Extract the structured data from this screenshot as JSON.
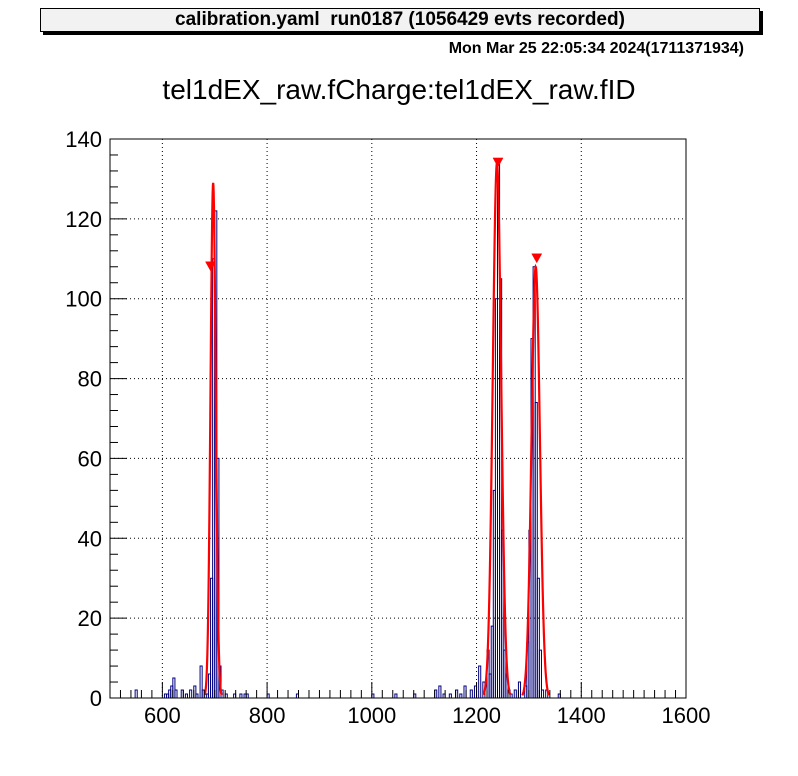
{
  "header": {
    "title": "calibration.yaml  run0187 (1056429 evts recorded)",
    "timestamp": "Mon Mar 25 22:05:34 2024(1711371934)"
  },
  "chart_data": {
    "type": "histogram",
    "title": "tel1dEX_raw.fCharge:tel1dEX_raw.fID",
    "xlabel": "",
    "ylabel": "",
    "xlim": [
      500,
      1600
    ],
    "ylim": [
      0,
      140
    ],
    "grid": true,
    "xticks": [
      600,
      800,
      1000,
      1200,
      1400,
      1600
    ],
    "yticks": [
      0,
      20,
      40,
      60,
      80,
      100,
      120,
      140
    ],
    "bin_width": 4,
    "histogram": {
      "name": "data",
      "color": "#000080",
      "bins": [
        [
          548,
          2
        ],
        [
          604,
          1
        ],
        [
          608,
          1
        ],
        [
          612,
          2
        ],
        [
          616,
          3
        ],
        [
          620,
          5
        ],
        [
          624,
          2
        ],
        [
          636,
          2
        ],
        [
          644,
          1
        ],
        [
          652,
          2
        ],
        [
          660,
          3
        ],
        [
          664,
          1
        ],
        [
          672,
          8
        ],
        [
          676,
          2
        ],
        [
          684,
          1
        ],
        [
          688,
          6
        ],
        [
          692,
          30
        ],
        [
          696,
          110
        ],
        [
          700,
          122
        ],
        [
          704,
          60
        ],
        [
          708,
          8
        ],
        [
          712,
          2
        ],
        [
          720,
          1
        ],
        [
          736,
          1
        ],
        [
          748,
          1
        ],
        [
          756,
          1
        ],
        [
          760,
          1
        ],
        [
          800,
          1
        ],
        [
          856,
          1
        ],
        [
          1000,
          1
        ],
        [
          1044,
          1
        ],
        [
          1080,
          1
        ],
        [
          1120,
          2
        ],
        [
          1128,
          3
        ],
        [
          1136,
          1
        ],
        [
          1148,
          1
        ],
        [
          1160,
          2
        ],
        [
          1168,
          1
        ],
        [
          1176,
          3
        ],
        [
          1188,
          2
        ],
        [
          1196,
          3
        ],
        [
          1204,
          8
        ],
        [
          1212,
          4
        ],
        [
          1220,
          12
        ],
        [
          1224,
          6
        ],
        [
          1228,
          18
        ],
        [
          1232,
          52
        ],
        [
          1236,
          100
        ],
        [
          1240,
          134
        ],
        [
          1244,
          105
        ],
        [
          1248,
          42
        ],
        [
          1252,
          12
        ],
        [
          1256,
          6
        ],
        [
          1260,
          2
        ],
        [
          1264,
          1
        ],
        [
          1272,
          2
        ],
        [
          1280,
          4
        ],
        [
          1292,
          3
        ],
        [
          1296,
          14
        ],
        [
          1300,
          42
        ],
        [
          1304,
          90
        ],
        [
          1308,
          108
        ],
        [
          1312,
          74
        ],
        [
          1316,
          30
        ],
        [
          1320,
          12
        ],
        [
          1324,
          2
        ],
        [
          1332,
          2
        ],
        [
          1356,
          1
        ]
      ]
    },
    "fits": [
      {
        "name": "fit-peak-1",
        "color": "#ff0000",
        "amplitude": 129,
        "mean": 697,
        "sigma": 5
      },
      {
        "name": "fit-peak-2",
        "color": "#ff0000",
        "amplitude": 134,
        "mean": 1239,
        "sigma": 8
      },
      {
        "name": "fit-peak-3",
        "color": "#ff0000",
        "amplitude": 108,
        "mean": 1313,
        "sigma": 8
      }
    ],
    "peak_markers": [
      {
        "x": 692,
        "y": 108
      },
      {
        "x": 1241,
        "y": 134
      },
      {
        "x": 1315,
        "y": 110
      }
    ]
  }
}
